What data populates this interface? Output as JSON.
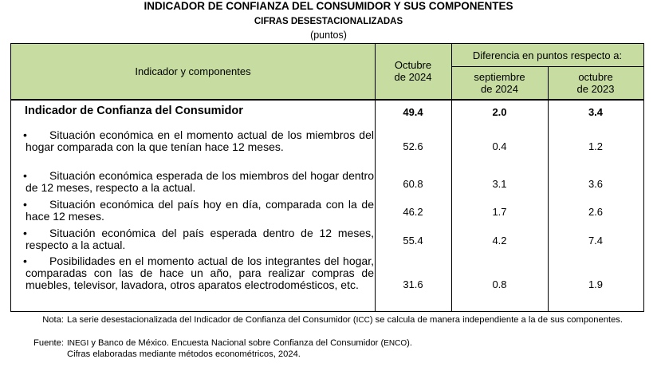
{
  "title": "INDICADOR DE CONFIANZA DEL CONSUMIDOR Y SUS COMPONENTES",
  "subtitle": "CIFRAS DESESTACIONALIZADAS",
  "units": "(puntos)",
  "table": {
    "header": {
      "col_indicator": "Indicador y componentes",
      "col_month_line1": "Octubre",
      "col_month_line2": "de 2024",
      "diff_group": "Diferencia en puntos respecto a:",
      "diff_col1_line1": "septiembre",
      "diff_col1_line2": "de 2024",
      "diff_col2_line1": "octubre",
      "diff_col2_line2": "de 2023"
    },
    "main_row": {
      "label": "Indicador de Confianza del Consumidor",
      "value": "49.4",
      "diff_prev_month": "2.0",
      "diff_prev_year": "3.4"
    },
    "components": [
      {
        "bullet": "•",
        "label": "Situación económica en el momento actual de los miembros del hogar comparada con la que tenían hace 12 meses.",
        "value": "52.6",
        "diff_prev_month": "0.4",
        "diff_prev_year": "1.2"
      },
      {
        "bullet": "•",
        "label": "Situación económica esperada de los miembros del hogar dentro de 12 meses, respecto a la actual.",
        "value": "60.8",
        "diff_prev_month": "3.1",
        "diff_prev_year": "3.6"
      },
      {
        "bullet": "•",
        "label": "Situación económica del país hoy en día, comparada con la de hace 12 meses.",
        "value": "46.2",
        "diff_prev_month": "1.7",
        "diff_prev_year": "2.6"
      },
      {
        "bullet": "•",
        "label": "Situación económica del país esperada dentro de 12 meses, respecto a la actual.",
        "value": "55.4",
        "diff_prev_month": "4.2",
        "diff_prev_year": "7.4"
      },
      {
        "bullet": "•",
        "label": "Posibilidades en el momento actual de los integrantes del hogar, comparadas con las de hace un año, para realizar compras de muebles, televisor, lavadora, otros aparatos electrodomésticos, etc.",
        "value": "31.6",
        "diff_prev_month": "0.8",
        "diff_prev_year": "1.9"
      }
    ]
  },
  "notes": {
    "note_label": "Nota:",
    "note_text_a": "La serie desestacionalizada del Indicador de Confianza del Consumidor (",
    "note_abbr_icc": "ICC",
    "note_text_b": ") se calcula de manera independiente a la de sus componentes.",
    "source_label": "Fuente:",
    "source_abbr_inegi": "INEGI",
    "source_text_a": " y Banco de México. Encuesta Nacional sobre Confianza del Consumidor (",
    "source_abbr_enco": "ENCO",
    "source_text_b": ").",
    "source_line2": "Cifras elaboradas mediante métodos econométricos, 2024."
  }
}
